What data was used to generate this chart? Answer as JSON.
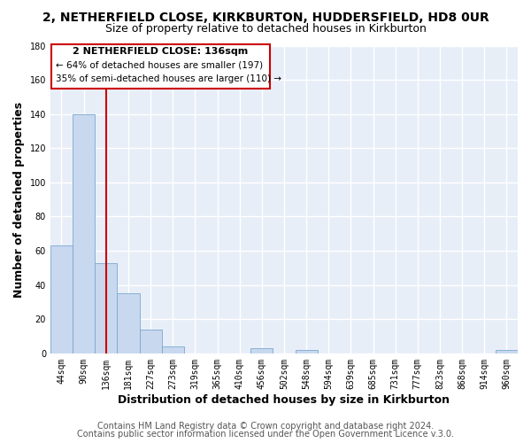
{
  "title": "2, NETHERFIELD CLOSE, KIRKBURTON, HUDDERSFIELD, HD8 0UR",
  "subtitle": "Size of property relative to detached houses in Kirkburton",
  "xlabel": "Distribution of detached houses by size in Kirkburton",
  "ylabel": "Number of detached properties",
  "bar_labels": [
    "44sqm",
    "90sqm",
    "136sqm",
    "181sqm",
    "227sqm",
    "273sqm",
    "319sqm",
    "365sqm",
    "410sqm",
    "456sqm",
    "502sqm",
    "548sqm",
    "594sqm",
    "639sqm",
    "685sqm",
    "731sqm",
    "777sqm",
    "823sqm",
    "868sqm",
    "914sqm",
    "960sqm"
  ],
  "bar_values": [
    63,
    140,
    53,
    35,
    14,
    4,
    0,
    0,
    0,
    3,
    0,
    2,
    0,
    0,
    0,
    0,
    0,
    0,
    0,
    0,
    2
  ],
  "bar_color": "#c8d8ee",
  "bar_edge_color": "#7aa8d0",
  "reference_line_x": 2,
  "reference_line_color": "#cc0000",
  "ylim": [
    0,
    180
  ],
  "yticks": [
    0,
    20,
    40,
    60,
    80,
    100,
    120,
    140,
    160,
    180
  ],
  "annotation_title": "2 NETHERFIELD CLOSE: 136sqm",
  "annotation_line1": "← 64% of detached houses are smaller (197)",
  "annotation_line2": "35% of semi-detached houses are larger (110) →",
  "annotation_box_color": "#cc0000",
  "footer_line1": "Contains HM Land Registry data © Crown copyright and database right 2024.",
  "footer_line2": "Contains public sector information licensed under the Open Government Licence v.3.0.",
  "background_color": "#ffffff",
  "plot_bg_color": "#e8eef8",
  "grid_color": "#ffffff",
  "title_fontsize": 10,
  "subtitle_fontsize": 9,
  "axis_label_fontsize": 9,
  "tick_fontsize": 7,
  "footer_fontsize": 7
}
